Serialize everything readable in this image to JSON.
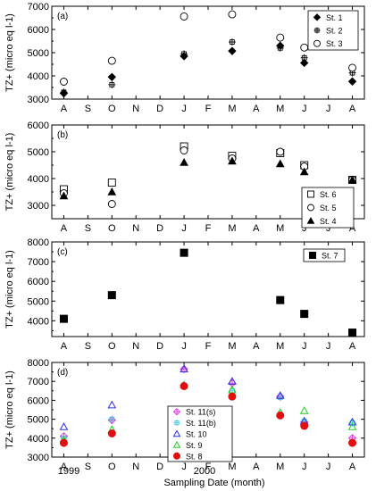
{
  "month_ticks": [
    "A",
    "S",
    "O",
    "N",
    "D",
    "J",
    "F",
    "M",
    "A",
    "M",
    "J",
    "J",
    "A"
  ],
  "shared_xlabel": "Sampling Date (month)",
  "year_labels": [
    "1999",
    "2000"
  ],
  "chart_data": [
    {
      "type": "scatter",
      "panel_label": "(a)",
      "ylabel": "TZ+ (micro eq l-1)",
      "ylim": [
        3000,
        7000
      ],
      "yticks": [
        3000,
        4000,
        5000,
        6000,
        7000
      ],
      "legend_position": "top-right",
      "series": [
        {
          "name": "St. 1",
          "marker": "diamond-filled",
          "points": [
            [
              0,
              3250
            ],
            [
              2,
              3950
            ],
            [
              5,
              4850
            ],
            [
              7,
              5070
            ],
            [
              9,
              5300
            ],
            [
              10,
              4560
            ],
            [
              12,
              3760
            ]
          ]
        },
        {
          "name": "St. 2",
          "marker": "cross-square",
          "points": [
            [
              0,
              3300
            ],
            [
              2,
              3620
            ],
            [
              5,
              4950
            ],
            [
              7,
              5460
            ],
            [
              9,
              5200
            ],
            [
              10,
              4780
            ],
            [
              12,
              4130
            ]
          ]
        },
        {
          "name": "St. 3",
          "marker": "circle-open",
          "points": [
            [
              0,
              3750
            ],
            [
              2,
              4650
            ],
            [
              5,
              6560
            ],
            [
              7,
              6650
            ],
            [
              9,
              5650
            ],
            [
              10,
              5220
            ],
            [
              12,
              4350
            ]
          ]
        }
      ]
    },
    {
      "type": "scatter",
      "panel_label": "(b)",
      "ylabel": "TZ+ (micro eq l-1)",
      "ylim": [
        2500,
        6000
      ],
      "yticks": [
        3000,
        4000,
        5000,
        6000
      ],
      "legend_position": "bottom-right",
      "series": [
        {
          "name": "St. 6",
          "marker": "square-open",
          "points": [
            [
              0,
              3600
            ],
            [
              2,
              3850
            ],
            [
              5,
              5200
            ],
            [
              7,
              4850
            ],
            [
              9,
              4950
            ],
            [
              10,
              4500
            ],
            [
              12,
              3950
            ]
          ]
        },
        {
          "name": "St. 5",
          "marker": "circle-open",
          "points": [
            [
              0,
              3450
            ],
            [
              2,
              3050
            ],
            [
              5,
              5050
            ],
            [
              7,
              4750
            ],
            [
              9,
              5000
            ],
            [
              10,
              4450
            ],
            [
              12,
              3950
            ]
          ]
        },
        {
          "name": "St. 4",
          "marker": "triangle-filled",
          "points": [
            [
              0,
              3350
            ],
            [
              2,
              3500
            ],
            [
              5,
              4600
            ],
            [
              7,
              4650
            ],
            [
              9,
              4550
            ],
            [
              10,
              4250
            ],
            [
              12,
              3950
            ]
          ]
        }
      ]
    },
    {
      "type": "scatter",
      "panel_label": "(c)",
      "ylabel": "TZ+ (micro eq l-1)",
      "ylim": [
        3200,
        8000
      ],
      "yticks": [
        3000,
        4000,
        5000,
        6000,
        7000,
        8000
      ],
      "legend_position": "top-right",
      "series": [
        {
          "name": "St. 7",
          "marker": "square-filled",
          "points": [
            [
              0,
              4100
            ],
            [
              2,
              5300
            ],
            [
              5,
              7450
            ],
            [
              9,
              5050
            ],
            [
              10,
              4350
            ],
            [
              12,
              3400
            ]
          ]
        }
      ]
    },
    {
      "type": "scatter",
      "panel_label": "(d)",
      "ylabel": "TZ+ (micro eq l-1)",
      "ylim": [
        3000,
        8000
      ],
      "yticks": [
        3000,
        4000,
        5000,
        6000,
        7000,
        8000
      ],
      "legend_position": "center",
      "series": [
        {
          "name": "St. 11(s)",
          "marker": "diamond-cross",
          "color": "#e040e0",
          "points": [
            [
              0,
              4100
            ],
            [
              2,
              4950
            ],
            [
              5,
              7650
            ],
            [
              7,
              6900
            ],
            [
              9,
              6200
            ],
            [
              10,
              4850
            ],
            [
              12,
              4000
            ]
          ]
        },
        {
          "name": "St. 11(b)",
          "marker": "cross-square",
          "color": "#40c8e0",
          "points": [
            [
              0,
              4000
            ],
            [
              2,
              5000
            ],
            [
              5,
              6800
            ],
            [
              7,
              6500
            ],
            [
              9,
              6150
            ],
            [
              10,
              4900
            ],
            [
              12,
              4800
            ]
          ]
        },
        {
          "name": "St. 10",
          "marker": "triangle-open",
          "color": "#3030e0",
          "points": [
            [
              0,
              4600
            ],
            [
              2,
              5750
            ],
            [
              5,
              7650
            ],
            [
              7,
              7000
            ],
            [
              9,
              6250
            ],
            [
              10,
              4900
            ],
            [
              12,
              4850
            ]
          ]
        },
        {
          "name": "St. 9",
          "marker": "triangle-open",
          "color": "#20d020",
          "points": [
            [
              0,
              3900
            ],
            [
              2,
              4450
            ],
            [
              5,
              6800
            ],
            [
              7,
              6550
            ],
            [
              9,
              5350
            ],
            [
              10,
              5450
            ],
            [
              12,
              4600
            ]
          ]
        },
        {
          "name": "St. 8",
          "marker": "circle-filled",
          "color": "#e01010",
          "points": [
            [
              0,
              3750
            ],
            [
              2,
              4250
            ],
            [
              5,
              6750
            ],
            [
              7,
              6200
            ],
            [
              9,
              5200
            ],
            [
              10,
              4650
            ],
            [
              12,
              3750
            ]
          ]
        }
      ]
    }
  ]
}
